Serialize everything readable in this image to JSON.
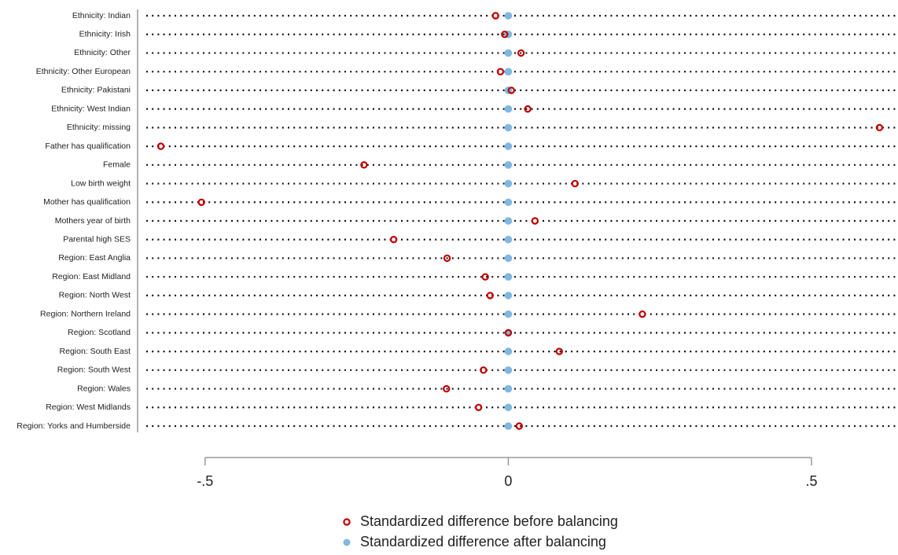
{
  "chart_data": {
    "type": "dot",
    "categories": [
      "Ethnicity: Indian",
      "Ethnicity: Irish",
      "Ethnicity: Other",
      "Ethnicity: Other European",
      "Ethnicity: Pakistani",
      "Ethnicity: West Indian",
      "Ethnicity: missing",
      "Father has qualification",
      "Female",
      "Low birth weight",
      "Mother has qualification",
      "Mothers year of birth",
      "Parental high SES",
      "Region: East Anglia",
      "Region: East Midland",
      "Region: North West",
      "Region: Northern Ireland",
      "Region: Scotland",
      "Region: South East",
      "Region: South West",
      "Region: Wales",
      "Region: West Midlands",
      "Region: Yorks and Humberside"
    ],
    "series": [
      {
        "name": "Standardized difference before balancing",
        "color": "#c00000",
        "marker": "hollow",
        "values": [
          -0.021,
          -0.006,
          0.021,
          -0.013,
          0.005,
          0.032,
          0.612,
          -0.573,
          -0.238,
          0.11,
          -0.506,
          0.044,
          -0.189,
          -0.101,
          -0.038,
          -0.03,
          0.221,
          0.0,
          0.084,
          -0.041,
          -0.102,
          -0.049,
          0.018
        ]
      },
      {
        "name": "Standardized difference after balancing",
        "color": "#7fb8e0",
        "marker": "filled",
        "values": [
          0,
          0,
          0,
          0,
          0,
          0,
          0,
          0,
          0,
          0,
          0,
          0,
          0,
          0,
          0,
          0,
          0,
          0,
          0,
          0,
          0,
          0,
          0
        ]
      }
    ],
    "xlim": [
      -0.61,
      0.64
    ],
    "xticks": [
      {
        "value": -0.5,
        "label": "-.5"
      },
      0,
      {
        "value": 0.5,
        "label": ".5"
      }
    ]
  }
}
